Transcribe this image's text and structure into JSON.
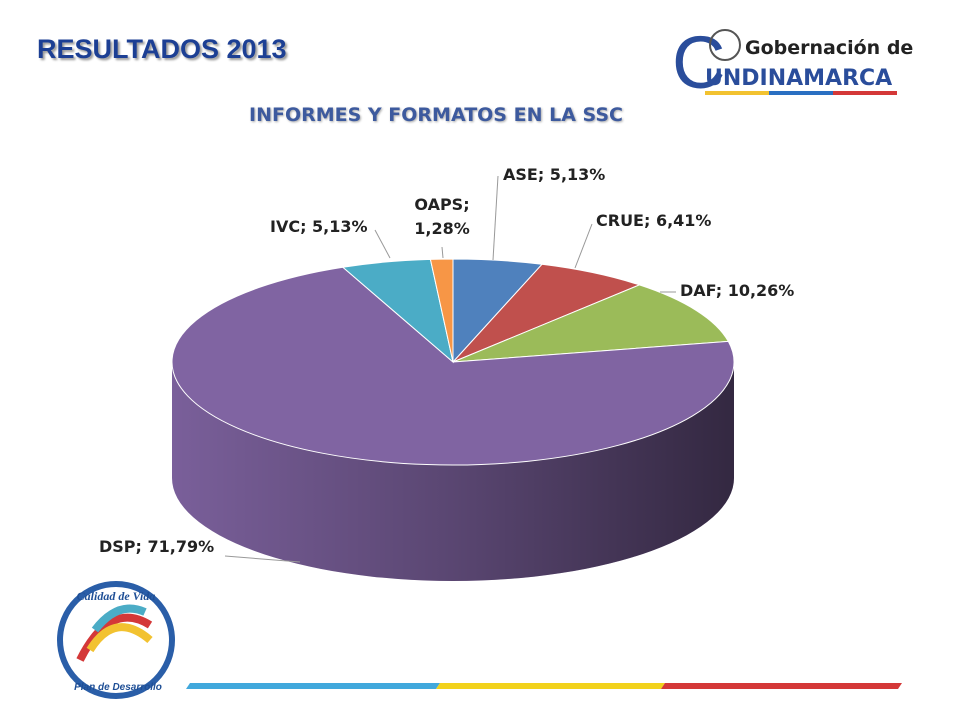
{
  "header": {
    "title": "RESULTADOS 2013"
  },
  "logo": {
    "line1": "Gobernación de",
    "initial": "C",
    "rest": "UNDINAMARCA"
  },
  "footer_logo": {
    "title": "Calidad de Vida",
    "subtitle": "Plan de Desarrollo"
  },
  "chart_data": {
    "type": "pie3d",
    "title": "INFORMES Y FORMATOS EN LA SSC",
    "values": [
      5.13,
      6.41,
      10.26,
      71.79,
      5.13,
      1.28
    ],
    "value_labels": [
      "ASE; 5,13%",
      "CRUE; 6,41%",
      "DAF; 10,26%",
      "DSP; 71,79%",
      "IVC; 5,13%",
      "OAPS; 1,28%"
    ],
    "colors": [
      "#4f81bd",
      "#c0504d",
      "#9bbb59",
      "#8064a2",
      "#4bacc6",
      "#f79646"
    ]
  }
}
